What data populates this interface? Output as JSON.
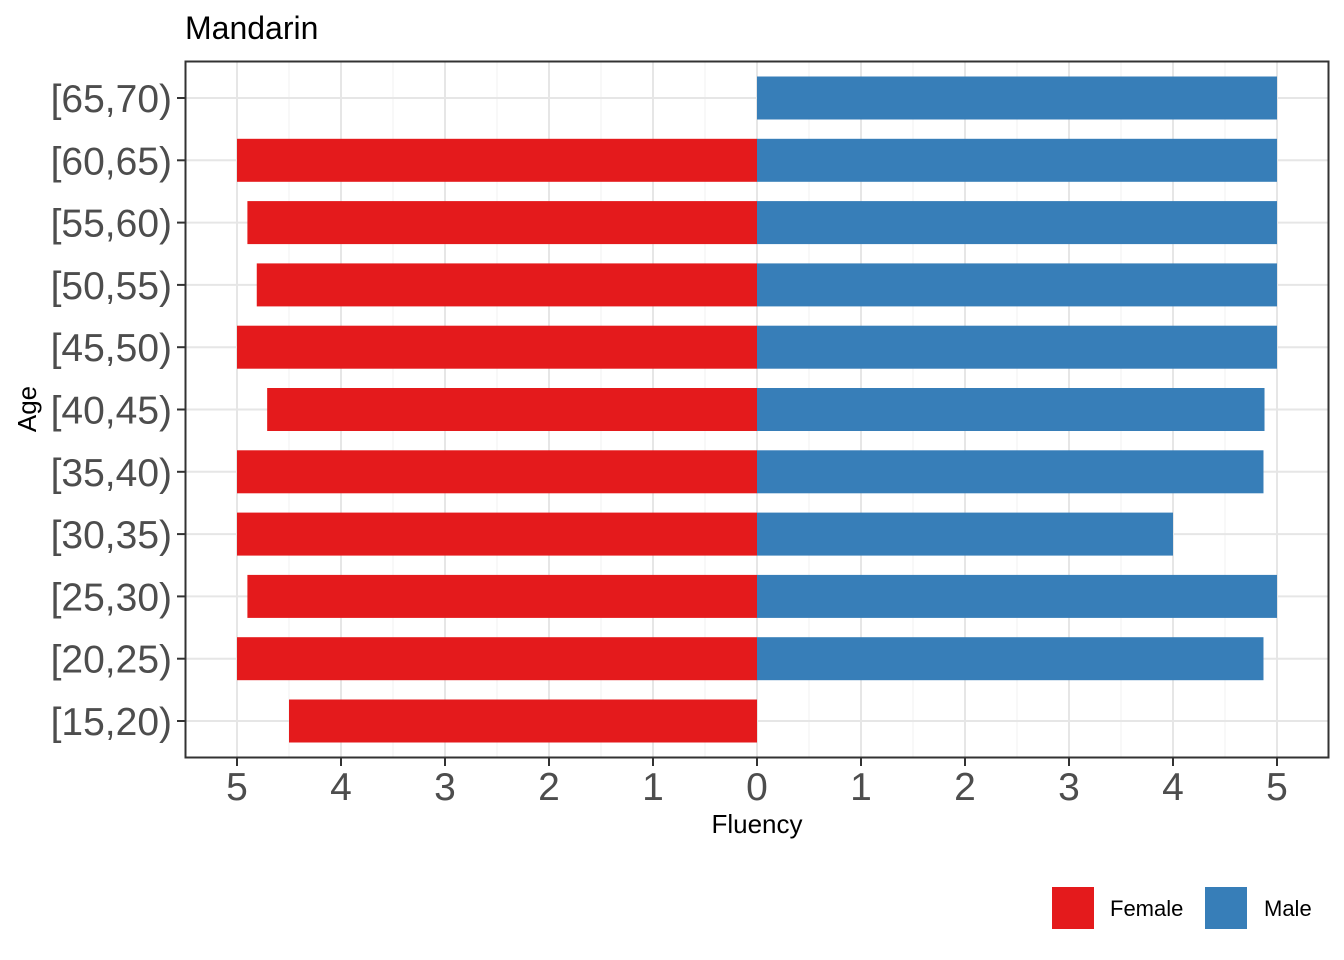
{
  "chart_data": {
    "type": "bar",
    "orientation": "horizontal",
    "diverging": true,
    "title": "Mandarin",
    "xlabel": "Fluency",
    "ylabel": "Age",
    "xlim": [
      -5,
      5
    ],
    "x_ticks": [
      -5,
      -4,
      -3,
      -2,
      -1,
      0,
      1,
      2,
      3,
      4,
      5
    ],
    "x_tick_labels": [
      "5",
      "4",
      "3",
      "2",
      "1",
      "0",
      "1",
      "2",
      "3",
      "4",
      "5"
    ],
    "categories": [
      "[15,20)",
      "[20,25)",
      "[25,30)",
      "[30,35)",
      "[35,40)",
      "[40,45)",
      "[45,50)",
      "[50,55)",
      "[55,60)",
      "[60,65)",
      "[65,70)"
    ],
    "series": [
      {
        "name": "Female",
        "color": "#e41a1c",
        "side": "left",
        "values": [
          4.5,
          5.0,
          4.9,
          5.0,
          5.0,
          4.71,
          5.0,
          4.81,
          4.9,
          5.0,
          null
        ]
      },
      {
        "name": "Male",
        "color": "#377eb8",
        "side": "right",
        "values": [
          null,
          4.87,
          5.0,
          4.0,
          4.87,
          4.88,
          5.0,
          5.0,
          5.0,
          5.0,
          5.0
        ]
      }
    ],
    "grid": true,
    "legend_position": "bottom-right"
  }
}
